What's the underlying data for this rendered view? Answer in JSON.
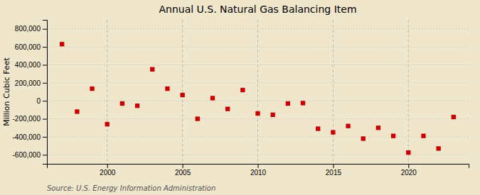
{
  "chart_data": {
    "type": "scatter",
    "title": "Annual U.S. Natural Gas Balancing Item",
    "ylabel": "Million Cubic Feet",
    "source": "Source: U.S. Energy Information Administration",
    "x": [
      1997,
      1998,
      1999,
      2000,
      2001,
      2002,
      2003,
      2004,
      2005,
      2006,
      2007,
      2008,
      2009,
      2010,
      2011,
      2012,
      2013,
      2014,
      2015,
      2016,
      2017,
      2018,
      2019,
      2020,
      2021,
      2022,
      2023
    ],
    "values": [
      630000,
      -120000,
      135000,
      -260000,
      -30000,
      -55000,
      350000,
      135000,
      65000,
      -200000,
      30000,
      -90000,
      120000,
      -140000,
      -155000,
      -30000,
      -25000,
      -310000,
      -350000,
      -280000,
      -420000,
      -300000,
      -390000,
      -575000,
      -390000,
      -530000,
      -180000
    ],
    "color": "#cc0000",
    "marker": "square",
    "xlim": [
      1996,
      2024
    ],
    "xticks": [
      2000,
      2005,
      2010,
      2015,
      2020
    ],
    "ylim": [
      -700000,
      900000
    ],
    "yticks": [
      {
        "value": -600000,
        "label": "-600,000"
      },
      {
        "value": -400000,
        "label": "-400,000"
      },
      {
        "value": -200000,
        "label": "-200,000"
      },
      0,
      {
        "value": 200000,
        "label": "200,000"
      },
      {
        "value": 400000,
        "label": "400,000"
      },
      {
        "value": 600000,
        "label": "600,000"
      },
      {
        "value": 800000,
        "label": "800,000"
      }
    ],
    "grid": true
  }
}
